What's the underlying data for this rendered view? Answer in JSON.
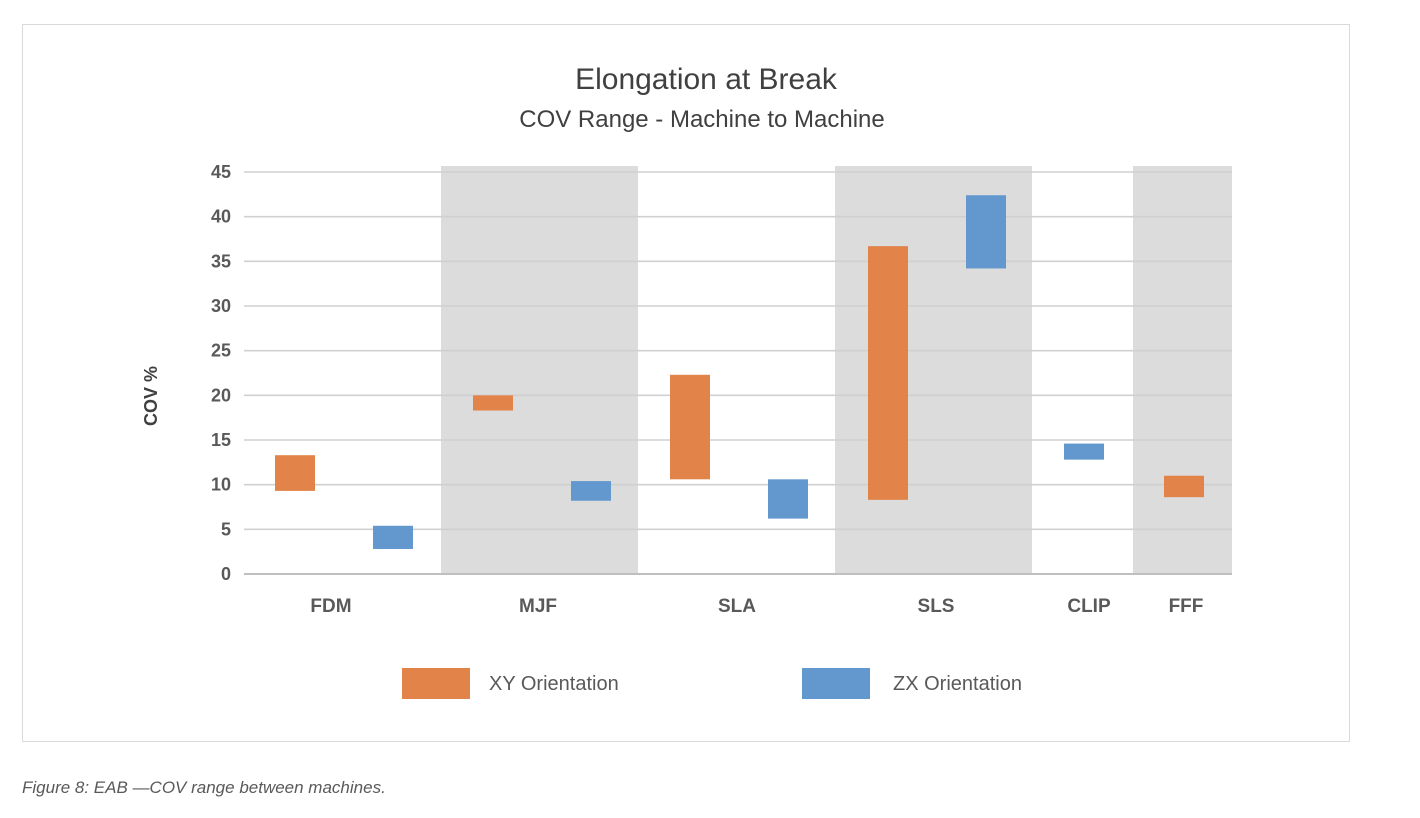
{
  "chart_data": {
    "type": "range-bar",
    "title": "Elongation at Break",
    "subtitle": "COV Range - Machine to Machine",
    "ylabel": "COV %",
    "xlabel": "",
    "ylim": [
      0,
      45
    ],
    "yticks": [
      0,
      5,
      10,
      15,
      20,
      25,
      30,
      35,
      40,
      45
    ],
    "grid": true,
    "legend_position": "bottom",
    "categories": [
      "FDM",
      "MJF",
      "SLA",
      "SLS",
      "CLIP",
      "FFF"
    ],
    "shaded_categories": [
      "MJF",
      "SLS",
      "FFF"
    ],
    "series": [
      {
        "name": "XY Orientation",
        "color": "#E2844A",
        "ranges": [
          {
            "category": "FDM",
            "low": 9.3,
            "high": 13.3
          },
          {
            "category": "MJF",
            "low": 18.3,
            "high": 20.0
          },
          {
            "category": "SLA",
            "low": 10.6,
            "high": 22.3
          },
          {
            "category": "SLS",
            "low": 8.3,
            "high": 36.7
          },
          {
            "category": "FFF",
            "low": 8.6,
            "high": 11.0
          }
        ]
      },
      {
        "name": "ZX Orientation",
        "color": "#6398CF",
        "ranges": [
          {
            "category": "FDM",
            "low": 2.8,
            "high": 5.4
          },
          {
            "category": "MJF",
            "low": 8.2,
            "high": 10.4
          },
          {
            "category": "SLA",
            "low": 6.2,
            "high": 10.6
          },
          {
            "category": "SLS",
            "low": 34.2,
            "high": 42.4
          },
          {
            "category": "CLIP",
            "low": 12.8,
            "high": 14.6
          }
        ]
      }
    ]
  },
  "caption": "Figure 8: EAB —COV range between machines.",
  "colors": {
    "band": "#DCDCDC",
    "grid": "#D0D0D0",
    "axis_text": "#595959",
    "title_text": "#404040"
  }
}
